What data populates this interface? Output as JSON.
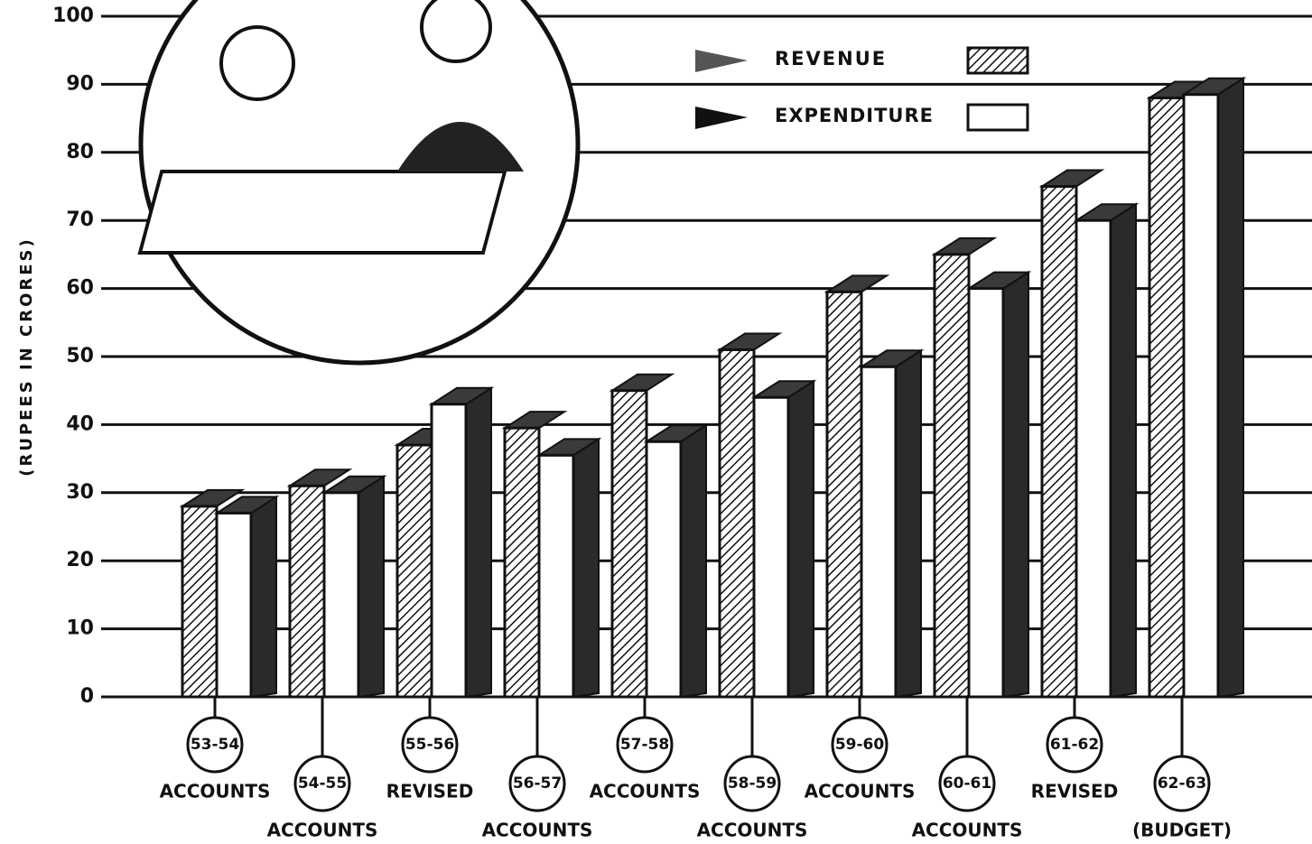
{
  "chart_data": {
    "type": "bar3d",
    "y_label": "(RUPEES IN CRORES)",
    "categories": [
      "53-54",
      "54-55",
      "55-56",
      "56-57",
      "57-58",
      "58-59",
      "59-60",
      "60-61",
      "61-62",
      "62-63"
    ],
    "category_notes": [
      "ACCOUNTS",
      "ACCOUNTS",
      "REVISED",
      "ACCOUNTS",
      "ACCOUNTS",
      "ACCOUNTS",
      "ACCOUNTS",
      "ACCOUNTS",
      "REVISED",
      "(BUDGET)"
    ],
    "series": [
      {
        "name": "REVENUE",
        "color": "hatched",
        "values": [
          28,
          31,
          37,
          39.5,
          45,
          51,
          59.5,
          65,
          75,
          88
        ]
      },
      {
        "name": "EXPENDITURE",
        "color": "#ffffff",
        "values": [
          27,
          30,
          43,
          35.5,
          37.5,
          44,
          48.5,
          60,
          70,
          88.5
        ]
      }
    ],
    "ylim": [
      0,
      100
    ],
    "yticks": [
      0,
      10,
      20,
      30,
      40,
      50,
      60,
      70,
      80,
      90,
      100
    ],
    "grid": true
  }
}
